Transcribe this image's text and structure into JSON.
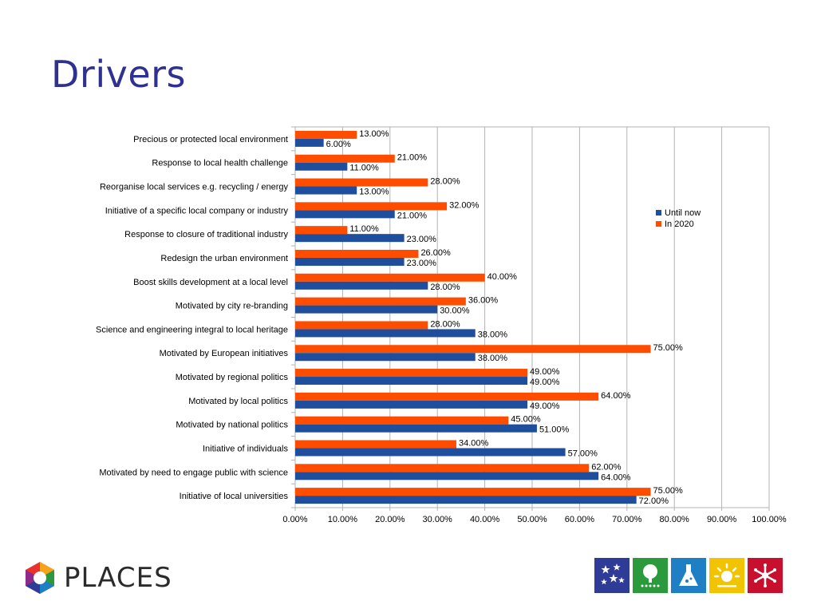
{
  "slide": {
    "title": "Drivers",
    "logo_text": "PLACES"
  },
  "colors": {
    "title": "#2e3192",
    "until_now": "#1f4e9c",
    "in_2020": "#ff4d00"
  },
  "badges": [
    {
      "icon": "stars-icon",
      "color": "#2e3c97"
    },
    {
      "icon": "tree-icon",
      "color": "#2b9a3c"
    },
    {
      "icon": "flask-icon",
      "color": "#1e7fc4"
    },
    {
      "icon": "sun-icon",
      "color": "#f2c300"
    },
    {
      "icon": "molecule-icon",
      "color": "#c8102e"
    }
  ],
  "chart_data": {
    "type": "bar",
    "orientation": "horizontal",
    "categories": [
      "Precious or protected local environment",
      "Response to local health challenge",
      "Reorganise local services e.g. recycling / energy",
      "Initiative of a specific local company or industry",
      "Response to closure of traditional industry",
      "Redesign the urban environment",
      "Boost skills development at a local level",
      "Motivated by city re-branding",
      "Science and engineering integral to local heritage",
      "Motivated by European initiatives",
      "Motivated by regional politics",
      "Motivated by local politics",
      "Motivated by national politics",
      "Initiative of individuals",
      "Motivated by need to engage public with science",
      "Initiative of local universities"
    ],
    "series": [
      {
        "name": "In 2020",
        "values": [
          13,
          21,
          28,
          32,
          11,
          26,
          40,
          36,
          28,
          75,
          49,
          64,
          45,
          34,
          62,
          75
        ]
      },
      {
        "name": "Until now",
        "values": [
          6,
          11,
          13,
          21,
          23,
          23,
          28,
          30,
          38,
          38,
          49,
          49,
          51,
          57,
          64,
          72
        ]
      }
    ],
    "value_labels": {
      "In 2020": [
        "13.00%",
        "21.00%",
        "28.00%",
        "32.00%",
        "11.00%",
        "26.00%",
        "40.00%",
        "36.00%",
        "28.00%",
        "75.00%",
        "49.00%",
        "64.00%",
        "45.00%",
        "34.00%",
        "62.00%",
        "75.00%"
      ],
      "Until now": [
        "6.00%",
        "11.00%",
        "13.00%",
        "21.00%",
        "23.00%",
        "23.00%",
        "28.00%",
        "30.00%",
        "38.00%",
        "38.00%",
        "49.00%",
        "49.00%",
        "51.00%",
        "57.00%",
        "64.00%",
        "72.00%"
      ]
    },
    "xticks": [
      0,
      10,
      20,
      30,
      40,
      50,
      60,
      70,
      80,
      90,
      100
    ],
    "xtick_labels": [
      "0.00%",
      "10.00%",
      "20.00%",
      "30.00%",
      "40.00%",
      "50.00%",
      "60.00%",
      "70.00%",
      "80.00%",
      "90.00%",
      "100.00%"
    ],
    "xlim": [
      0,
      100
    ],
    "grid": true,
    "legend": {
      "position": "right",
      "entries": [
        {
          "name": "Until now",
          "color": "#1f4e9c"
        },
        {
          "name": "In 2020",
          "color": "#ff4d00"
        }
      ]
    }
  }
}
